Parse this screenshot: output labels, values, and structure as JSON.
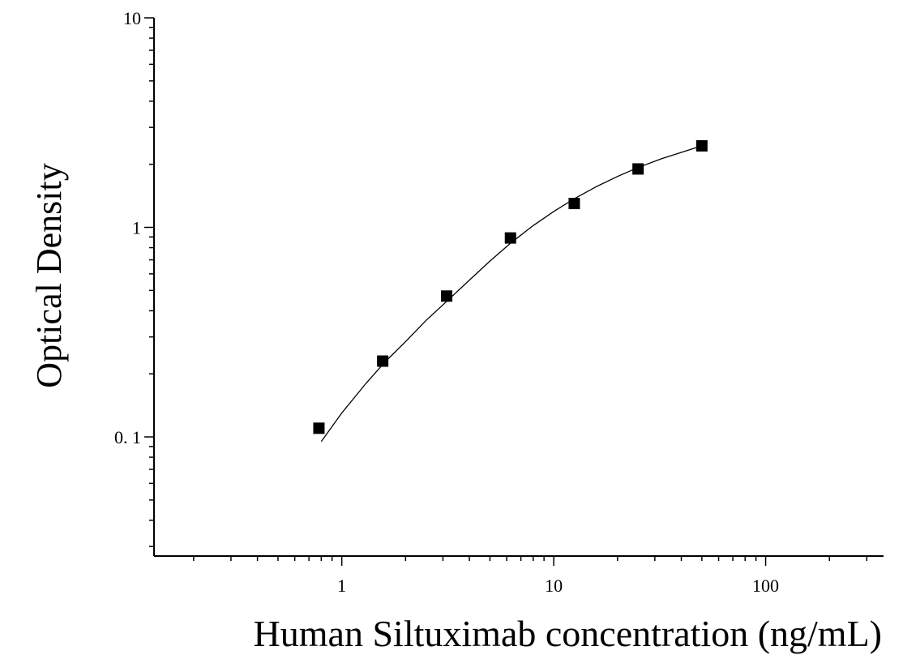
{
  "chart_data": {
    "type": "scatter",
    "title": "",
    "xlabel": "Human Siltuximab concentration (ng/mL)",
    "ylabel": "Optical Density",
    "x_scale": "log",
    "y_scale": "log",
    "xlim": [
      0.13,
      360
    ],
    "ylim": [
      0.027,
      10
    ],
    "x_ticks": [
      {
        "value": 1,
        "label": "1"
      },
      {
        "value": 10,
        "label": "10"
      },
      {
        "value": 100,
        "label": "100"
      }
    ],
    "y_ticks": [
      {
        "value": 0.1,
        "label": "0. 1"
      },
      {
        "value": 1,
        "label": "1"
      },
      {
        "value": 10,
        "label": "10"
      }
    ],
    "grid": false,
    "legend": "none",
    "marker_color": "#000000",
    "line_color": "#000000",
    "series": [
      {
        "x": [
          0.78,
          1.56,
          3.125,
          6.25,
          12.5,
          25,
          50
        ],
        "y": [
          0.11,
          0.23,
          0.47,
          0.89,
          1.3,
          1.9,
          2.45
        ]
      }
    ],
    "fit_curve": {
      "x": [
        0.8,
        1.0,
        1.3,
        1.6,
        2.0,
        2.5,
        3.1,
        4.0,
        5.0,
        6.25,
        8.0,
        10.0,
        12.5,
        16.0,
        20.0,
        25.0,
        32.0,
        40.0,
        50.0
      ],
      "y": [
        0.095,
        0.13,
        0.18,
        0.228,
        0.285,
        0.36,
        0.44,
        0.56,
        0.69,
        0.84,
        1.02,
        1.19,
        1.37,
        1.57,
        1.75,
        1.93,
        2.12,
        2.28,
        2.45
      ]
    }
  }
}
